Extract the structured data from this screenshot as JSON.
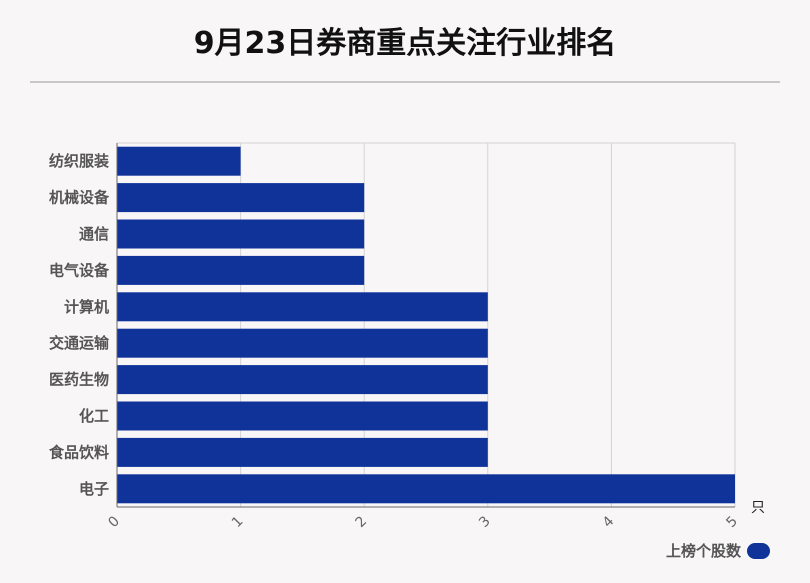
{
  "chart_data": {
    "type": "bar",
    "orientation": "horizontal",
    "title": "9月23日券商重点关注行业排名",
    "categories": [
      "纺织服装",
      "机械设备",
      "通信",
      "电气设备",
      "计算机",
      "交通运输",
      "医药生物",
      "化工",
      "食品饮料",
      "电子"
    ],
    "series": [
      {
        "name": "上榜个股数",
        "values": [
          1,
          2,
          2,
          2,
          3,
          3,
          3,
          3,
          3,
          5
        ]
      }
    ],
    "xlim": [
      0,
      5
    ],
    "x_ticks": [
      "0",
      "1",
      "2",
      "3",
      "4",
      "5"
    ],
    "x_unit": "只",
    "grid": true,
    "legend_position": "bottom-right",
    "bar_color": "#10339a"
  }
}
